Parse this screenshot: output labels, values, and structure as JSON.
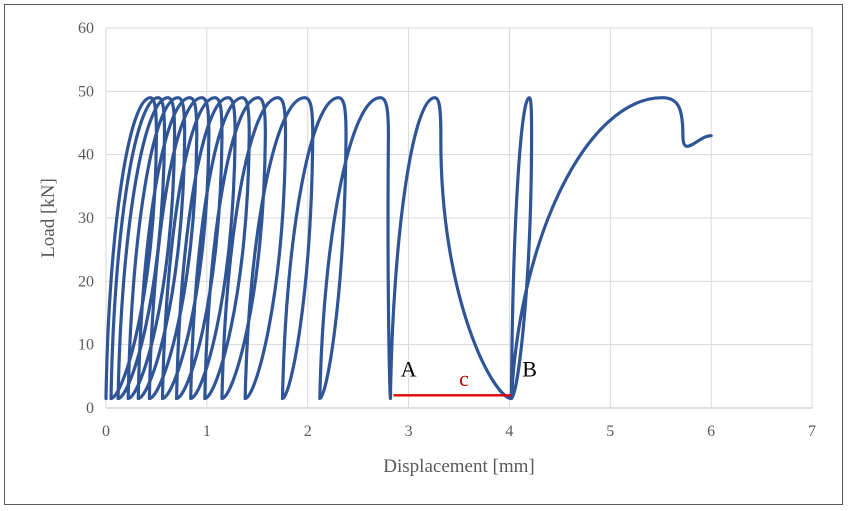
{
  "chart_data": {
    "type": "line",
    "title": "",
    "xlabel": "Displacement [mm]",
    "ylabel": "Load [kN]",
    "xlim": [
      0,
      7
    ],
    "ylim": [
      0,
      60
    ],
    "xticks": [
      "0",
      "1",
      "2",
      "3",
      "4",
      "5",
      "6",
      "7"
    ],
    "yticks": [
      "0",
      "10",
      "20",
      "30",
      "40",
      "50",
      "60"
    ],
    "grid": true,
    "legend": "none",
    "color": "#2f5597",
    "series": [
      {
        "loops": [
          {
            "x_start": 0.0,
            "x_max": 0.5,
            "x_min_end": 0.05
          },
          {
            "x_start": 0.05,
            "x_max": 0.58,
            "x_min_end": 0.12
          },
          {
            "x_start": 0.12,
            "x_max": 0.68,
            "x_min_end": 0.22
          },
          {
            "x_start": 0.22,
            "x_max": 0.78,
            "x_min_end": 0.32
          },
          {
            "x_start": 0.32,
            "x_max": 0.9,
            "x_min_end": 0.43
          },
          {
            "x_start": 0.43,
            "x_max": 1.02,
            "x_min_end": 0.56
          },
          {
            "x_start": 0.56,
            "x_max": 1.15,
            "x_min_end": 0.7
          },
          {
            "x_start": 0.7,
            "x_max": 1.28,
            "x_min_end": 0.84
          },
          {
            "x_start": 0.84,
            "x_max": 1.42,
            "x_min_end": 0.98
          },
          {
            "x_start": 0.98,
            "x_max": 1.58,
            "x_min_end": 1.15
          },
          {
            "x_start": 1.15,
            "x_max": 1.78,
            "x_min_end": 1.38
          },
          {
            "x_start": 1.38,
            "x_max": 2.05,
            "x_min_end": 1.75
          },
          {
            "x_start": 1.75,
            "x_max": 2.38,
            "x_min_end": 2.12
          },
          {
            "x_start": 2.12,
            "x_max": 2.8,
            "x_min_end": 2.82
          },
          {
            "x_start": 2.82,
            "x_max": 3.32,
            "x_min_end": 4.02
          },
          {
            "x_start": 4.02,
            "x_max": 4.22,
            "x_min_end": 4.02
          },
          {
            "x_start": 4.02,
            "x_max": 5.72,
            "x_min_end": null
          }
        ],
        "peak_load": 49,
        "min_load": 1.5,
        "end_point": {
          "x": 6.0,
          "y": 43
        }
      }
    ],
    "annotations": [
      {
        "text": "A",
        "x": 3.0,
        "y": 5
      },
      {
        "text": "B",
        "x": 4.2,
        "y": 5
      },
      {
        "text": "c",
        "x": 3.55,
        "y": 3.5,
        "color": "#c00000"
      }
    ],
    "marker_line": {
      "x1": 2.85,
      "x2": 4.02,
      "y": 2,
      "color": "#e00000"
    }
  }
}
